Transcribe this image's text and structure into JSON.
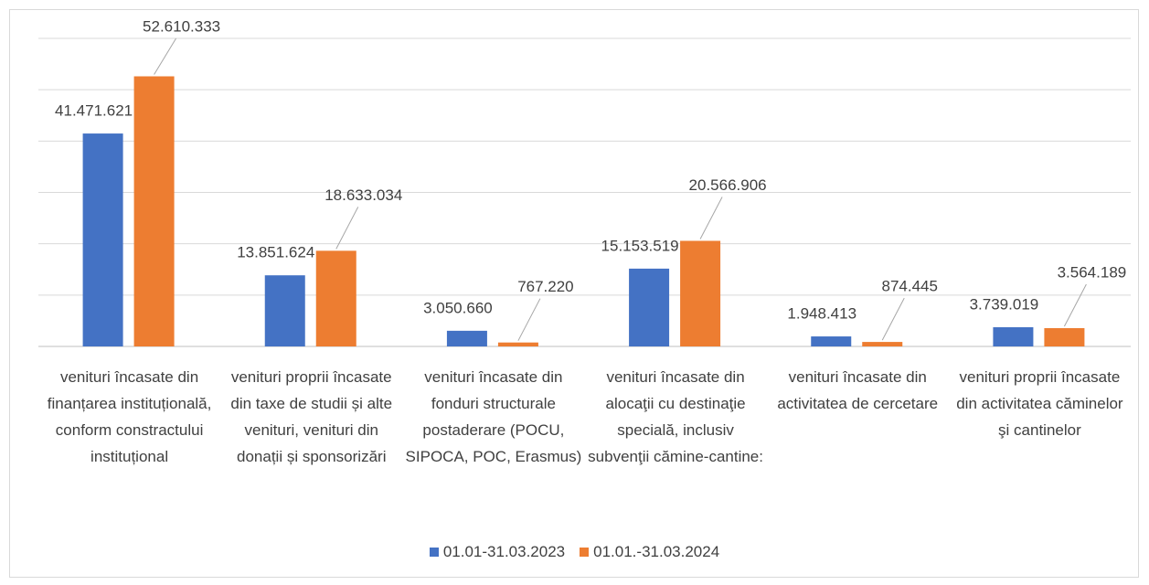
{
  "chart_data": {
    "type": "bar",
    "categories": [
      "venituri încasate din finanțarea instituțională, conform constractului instituțional",
      "venituri proprii încasate din taxe de studii și alte venituri, venituri din donații și sponsorizări",
      "venituri încasate din fonduri structurale postaderare (POCU, SIPOCA, POC, Erasmus)",
      "venituri încasate din alocaţii cu destinaţie specială, inclusiv subvenţii cămine-cantine:",
      "venituri încasate din activitatea de cercetare",
      "venituri proprii încasate din activitatea căminelor şi cantinelor"
    ],
    "series": [
      {
        "name": "01.01-31.03.2023",
        "color": "#4472c4",
        "values": [
          41471621,
          13851624,
          3050660,
          15153519,
          1948413,
          3739019
        ],
        "value_labels": [
          "41.471.621",
          "13.851.624",
          "3.050.660",
          "15.153.519",
          "1.948.413",
          "3.739.019"
        ]
      },
      {
        "name": "01.01.-31.03.2024",
        "color": "#ed7d31",
        "values": [
          52610333,
          18633034,
          767220,
          20566906,
          874445,
          3564189
        ],
        "value_labels": [
          "52.610.333",
          "18.633.034",
          "767.220",
          "20.566.906",
          "874.445",
          "3.564.189"
        ]
      }
    ],
    "ylim": [
      0,
      60000000
    ],
    "yticks": [
      0,
      10000000,
      20000000,
      30000000,
      40000000,
      50000000,
      60000000
    ],
    "grid": true,
    "legend": "bottom"
  }
}
